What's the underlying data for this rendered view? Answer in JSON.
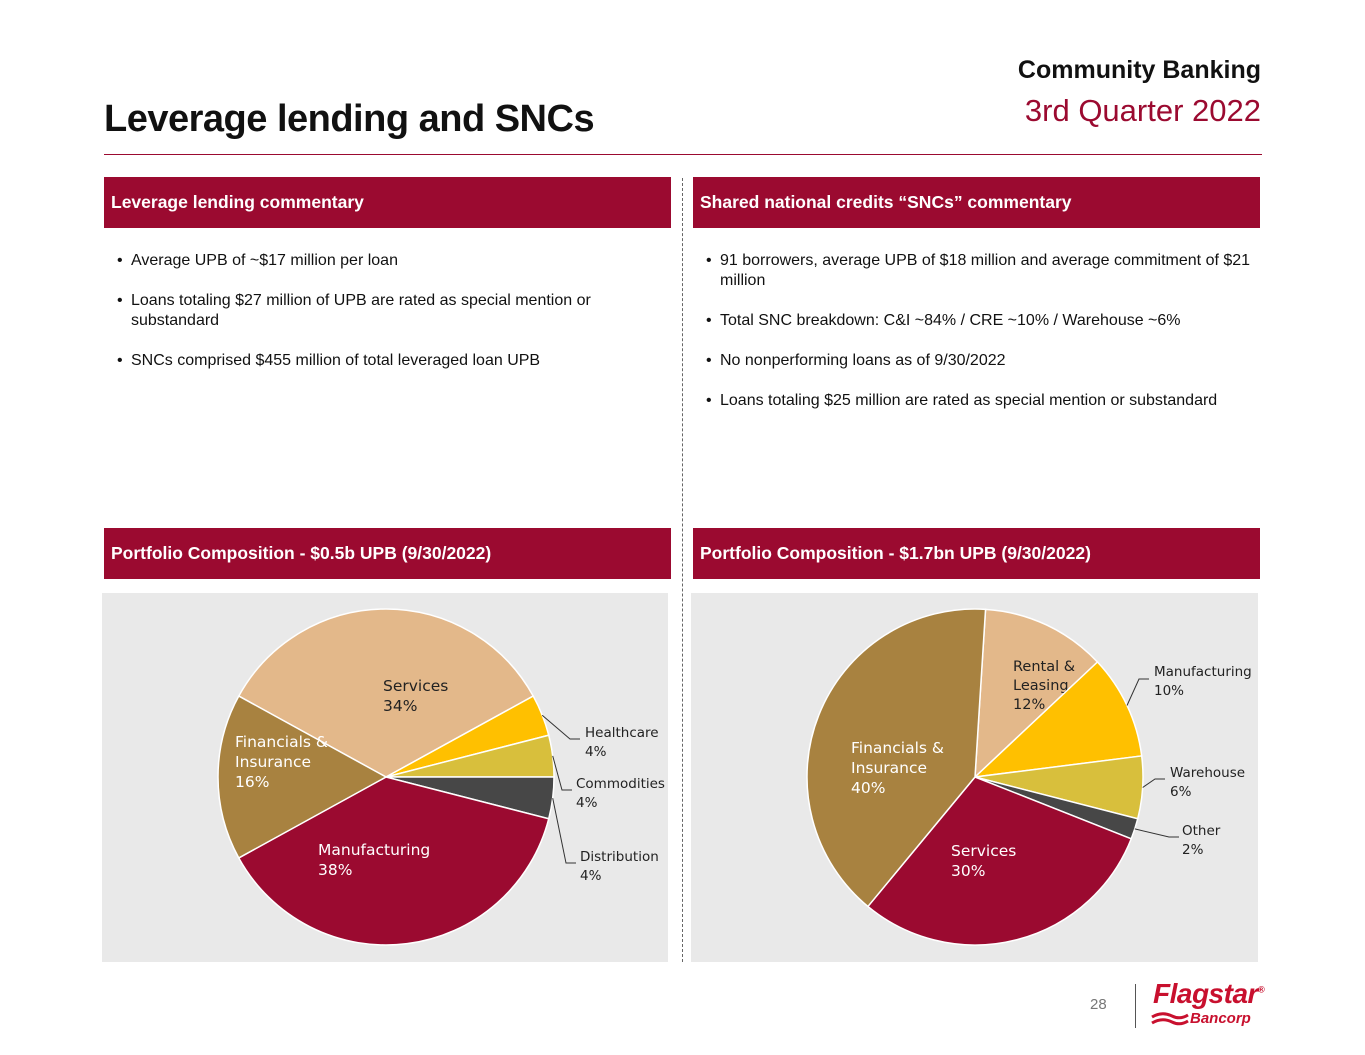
{
  "header": {
    "title": "Leverage lending and SNCs",
    "section": "Community Banking",
    "period": "3rd Quarter 2022"
  },
  "left": {
    "commentary_title": "Leverage lending commentary",
    "bullets": [
      "Average UPB of ~$17 million per loan",
      "Loans totaling $27 million of UPB are rated as special mention or substandard",
      "SNCs comprised $455 million of total leveraged loan UPB"
    ],
    "chart_title": "Portfolio Composition - $0.5b UPB (9/30/2022)"
  },
  "right": {
    "commentary_title": "Shared national credits “SNCs” commentary",
    "bullets": [
      "91 borrowers, average UPB of $18 million and average commitment of $21 million",
      "Total SNC breakdown:  C&I ~84% /  CRE ~10%  /  Warehouse ~6%",
      "No nonperforming loans as of 9/30/2022",
      "Loans totaling $25 million are rated as special mention or substandard"
    ],
    "chart_title": "Portfolio Composition - $1.7bn UPB (9/30/2022)"
  },
  "colors": {
    "accent": "#9b0a30",
    "financials": "#a88240",
    "services_tan": "#e3b88a",
    "yellow": "#ffc000",
    "mustard": "#d8bf3c",
    "dark_gray": "#474747",
    "panel_bg": "#e9e9e9"
  },
  "chart_data": [
    {
      "type": "pie",
      "title": "Portfolio Composition - $0.5b UPB (9/30/2022)",
      "unit": "%",
      "slices": [
        {
          "name": "Services",
          "value": 34,
          "label": "34%",
          "color": "#e3b88a"
        },
        {
          "name": "Healthcare",
          "value": 4,
          "label": "4%",
          "color": "#ffc000"
        },
        {
          "name": "Commodities",
          "value": 4,
          "label": "4%",
          "color": "#d8bf3c"
        },
        {
          "name": "Distribution",
          "value": 4,
          "label": "4%",
          "color": "#474747"
        },
        {
          "name": "Manufacturing",
          "value": 38,
          "label": "38%",
          "color": "#9b0a30"
        },
        {
          "name": "Financials & Insurance",
          "value": 16,
          "label": "16%",
          "color": "#a88240"
        }
      ]
    },
    {
      "type": "pie",
      "title": "Portfolio Composition - $1.7bn UPB (9/30/2022)",
      "unit": "%",
      "slices": [
        {
          "name": "Rental & Leasing",
          "value": 12,
          "label": "12%",
          "color": "#e3b88a"
        },
        {
          "name": "Manufacturing",
          "value": 10,
          "label": "10%",
          "color": "#ffc000"
        },
        {
          "name": "Warehouse",
          "value": 6,
          "label": "6%",
          "color": "#d8bf3c"
        },
        {
          "name": "Other",
          "value": 2,
          "label": "2%",
          "color": "#474747"
        },
        {
          "name": "Services",
          "value": 30,
          "label": "30%",
          "color": "#9b0a30"
        },
        {
          "name": "Financials & Insurance",
          "value": 40,
          "label": "40%",
          "color": "#a88240"
        }
      ]
    }
  ],
  "footer": {
    "page_number": "28",
    "logo_main": "Flagstar",
    "logo_reg": "®",
    "logo_sub": "Bancorp"
  }
}
